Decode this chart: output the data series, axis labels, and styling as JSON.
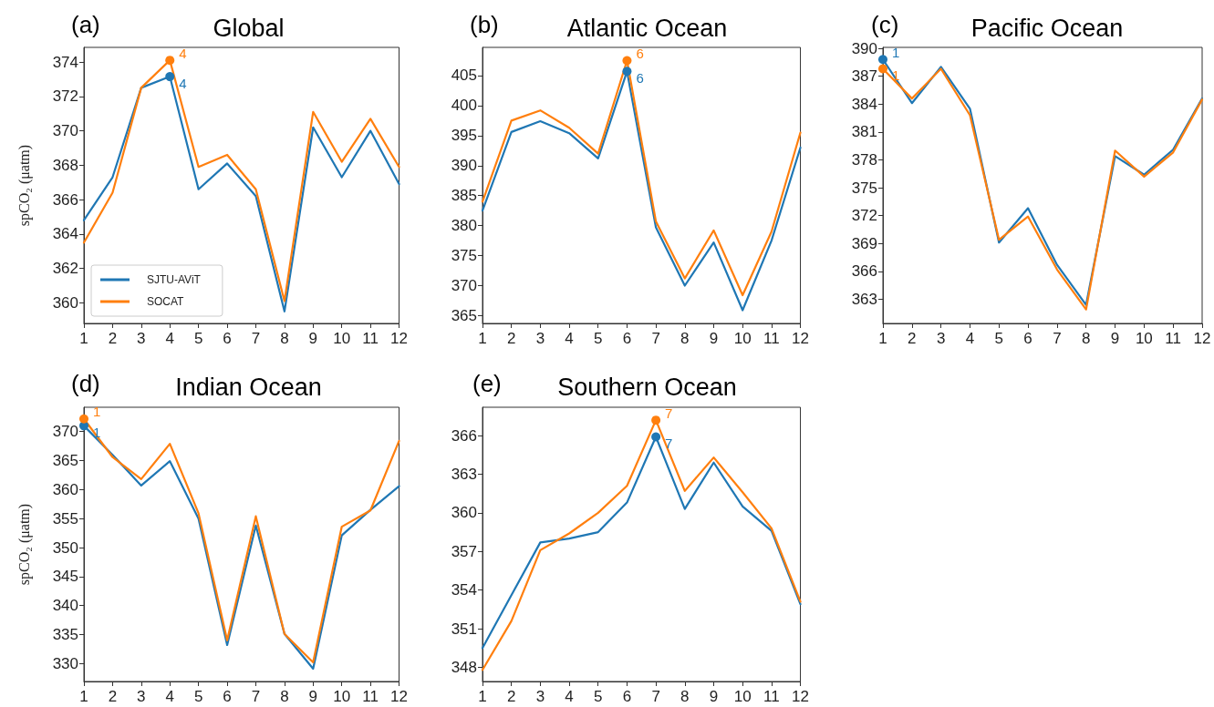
{
  "chart_data": [
    {
      "type": "line",
      "title": "Global",
      "ylabel": "spCO₂ (μatm)",
      "annotations": [
        "(a)",
        {
          "text": "4",
          "x": 4,
          "y": 373.15
        },
        {
          "text": "4",
          "x": 4,
          "y": 374.1
        }
      ],
      "x": [
        1,
        2,
        3,
        4,
        5,
        6,
        7,
        8,
        9,
        10,
        11,
        12
      ],
      "xlim": [
        1,
        12
      ],
      "xticks": [
        1,
        2,
        3,
        4,
        5,
        6,
        7,
        8,
        9,
        10,
        11,
        12
      ],
      "ylim": [
        358.8,
        374.85
      ],
      "yticks": [
        360,
        362,
        364,
        366,
        368,
        370,
        372,
        374
      ],
      "legend": "bottom left",
      "grid": false,
      "marker": "none",
      "line_style": "solid",
      "series": [
        {
          "name": "SJTU-AViT",
          "color": "#1f77b4",
          "values": [
            364.8,
            367.3,
            372.5,
            373.15,
            366.6,
            368.1,
            366.2,
            359.5,
            370.2,
            367.3,
            370.0,
            366.9
          ]
        },
        {
          "name": "SOCAT",
          "color": "#ff7f0e",
          "values": [
            363.5,
            366.4,
            372.5,
            374.1,
            367.9,
            368.6,
            366.6,
            360.1,
            371.1,
            368.2,
            370.7,
            367.9
          ]
        }
      ]
    },
    {
      "type": "line",
      "title": "Atlantic Ocean",
      "annotations": [
        "(b)",
        {
          "text": "6",
          "x": 6,
          "y": 405.7
        },
        {
          "text": "6",
          "x": 6,
          "y": 407.5
        }
      ],
      "x": [
        1,
        2,
        3,
        4,
        5,
        6,
        7,
        8,
        9,
        10,
        11,
        12
      ],
      "xlim": [
        1,
        12
      ],
      "xticks": [
        1,
        2,
        3,
        4,
        5,
        6,
        7,
        8,
        9,
        10,
        11,
        12
      ],
      "ylim": [
        363.7,
        409.7
      ],
      "yticks": [
        365,
        370,
        375,
        380,
        385,
        390,
        395,
        400,
        405
      ],
      "grid": false,
      "marker": "none",
      "line_style": "solid",
      "series": [
        {
          "color": "#1f77b4",
          "values": [
            382.5,
            395.6,
            397.4,
            395.4,
            391.2,
            405.7,
            379.7,
            370.0,
            377.2,
            365.9,
            377.5,
            393.0
          ]
        },
        {
          "color": "#ff7f0e",
          "values": [
            384.0,
            397.5,
            399.2,
            396.3,
            392.0,
            407.5,
            380.7,
            371.2,
            379.2,
            368.4,
            379.0,
            395.5
          ]
        }
      ]
    },
    {
      "type": "line",
      "title": "Pacific Ocean",
      "annotations": [
        "(c)",
        {
          "text": "1",
          "x": 1,
          "y": 388.8
        },
        {
          "text": "1",
          "x": 1,
          "y": 387.8
        }
      ],
      "x": [
        1,
        2,
        3,
        4,
        5,
        6,
        7,
        8,
        9,
        10,
        11,
        12
      ],
      "xlim": [
        1,
        12
      ],
      "xticks": [
        1,
        2,
        3,
        4,
        5,
        6,
        7,
        8,
        9,
        10,
        11,
        12
      ],
      "ylim": [
        360.4,
        390.1
      ],
      "yticks": [
        363,
        366,
        369,
        372,
        375,
        378,
        381,
        384,
        387,
        390
      ],
      "grid": false,
      "marker": "none",
      "line_style": "solid",
      "series": [
        {
          "color": "#1f77b4",
          "values": [
            388.8,
            384.1,
            388.0,
            383.5,
            369.1,
            372.8,
            366.7,
            362.4,
            378.4,
            376.4,
            379.1,
            384.6
          ]
        },
        {
          "color": "#ff7f0e",
          "values": [
            387.8,
            384.6,
            387.8,
            382.8,
            369.4,
            371.9,
            366.2,
            361.9,
            379.0,
            376.2,
            378.8,
            384.5
          ]
        }
      ]
    },
    {
      "type": "line",
      "title": "Indian Ocean",
      "ylabel": "spCO₂ (μatm)",
      "annotations": [
        "(d)",
        {
          "text": "1",
          "x": 1,
          "y": 371.0
        },
        {
          "text": "1",
          "x": 1,
          "y": 372.2
        }
      ],
      "x": [
        1,
        2,
        3,
        4,
        5,
        6,
        7,
        8,
        9,
        10,
        11,
        12
      ],
      "xlim": [
        1,
        12
      ],
      "xticks": [
        1,
        2,
        3,
        4,
        5,
        6,
        7,
        8,
        9,
        10,
        11,
        12
      ],
      "ylim": [
        326.9,
        374.2
      ],
      "yticks": [
        330,
        335,
        340,
        345,
        350,
        355,
        360,
        365,
        370
      ],
      "grid": false,
      "marker": "none",
      "line_style": "solid",
      "series": [
        {
          "color": "#1f77b4",
          "values": [
            371.0,
            366.0,
            360.7,
            364.9,
            355.0,
            333.2,
            353.8,
            335.1,
            329.1,
            352.1,
            356.5,
            360.6
          ]
        },
        {
          "color": "#ff7f0e",
          "values": [
            372.2,
            365.6,
            361.8,
            367.9,
            355.9,
            334.0,
            355.4,
            335.1,
            330.2,
            353.6,
            356.4,
            368.4
          ]
        }
      ]
    },
    {
      "type": "line",
      "title": "Southern Ocean",
      "annotations": [
        "(e)",
        {
          "text": "7",
          "x": 7,
          "y": 365.9
        },
        {
          "text": "7",
          "x": 7,
          "y": 367.2
        }
      ],
      "x": [
        1,
        2,
        3,
        4,
        5,
        6,
        7,
        8,
        9,
        10,
        11,
        12
      ],
      "xlim": [
        1,
        12
      ],
      "xticks": [
        1,
        2,
        3,
        4,
        5,
        6,
        7,
        8,
        9,
        10,
        11,
        12
      ],
      "ylim": [
        346.9,
        368.2
      ],
      "yticks": [
        348,
        351,
        354,
        357,
        360,
        363,
        366
      ],
      "grid": false,
      "marker": "none",
      "line_style": "solid",
      "series": [
        {
          "color": "#1f77b4",
          "values": [
            349.5,
            353.6,
            357.7,
            358.0,
            358.5,
            360.8,
            365.9,
            360.3,
            363.9,
            360.5,
            358.6,
            352.9
          ]
        },
        {
          "color": "#ff7f0e",
          "values": [
            347.8,
            351.6,
            357.1,
            358.4,
            360.0,
            362.1,
            367.2,
            361.7,
            364.3,
            361.6,
            358.8,
            353.1
          ]
        }
      ]
    }
  ]
}
